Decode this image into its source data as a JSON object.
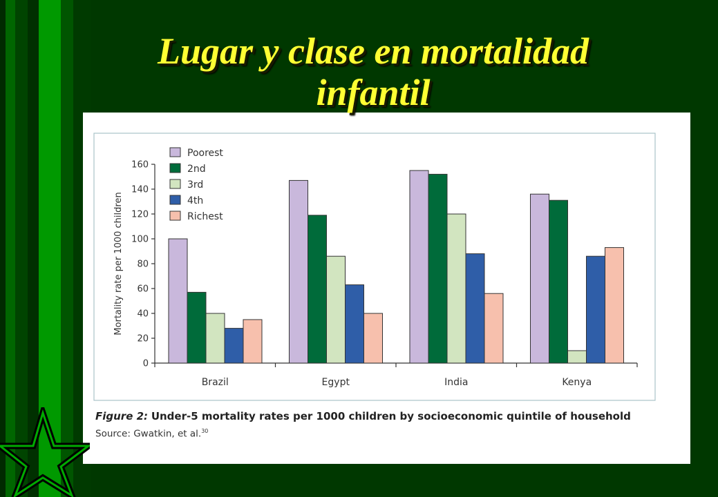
{
  "slide": {
    "title_line1": "Lugar y clase en mortalidad",
    "title_line2": "infantil"
  },
  "figure": {
    "caption_label": "Figure 2:",
    "caption_text": "Under-5 mortality rates per 1000 children by socioeconomic quintile of household",
    "source_text": "Source: Gwatkin, et al.",
    "source_ref": "30"
  },
  "colors": {
    "background": "#003800",
    "title": "#ffff33",
    "stripe_bright": "#009900",
    "stripe_dark": "#004400"
  },
  "chart_data": {
    "type": "bar",
    "ylabel": "Mortality rate per 1000 children",
    "xlabel": "",
    "ylim": [
      0,
      160
    ],
    "yticks": [
      0,
      20,
      40,
      60,
      80,
      100,
      120,
      140,
      160
    ],
    "categories": [
      "Brazil",
      "Egypt",
      "India",
      "Kenya"
    ],
    "legend_position": "top-left",
    "grid": false,
    "series": [
      {
        "name": "Poorest",
        "color": "#c9b8dc",
        "values": [
          100,
          147,
          155,
          136
        ]
      },
      {
        "name": "2nd",
        "color": "#006b3a",
        "values": [
          57,
          119,
          152,
          131
        ]
      },
      {
        "name": "3rd",
        "color": "#d2e5c0",
        "values": [
          40,
          86,
          120,
          10
        ]
      },
      {
        "name": "4th",
        "color": "#2f5ea8",
        "values": [
          28,
          63,
          88,
          86
        ]
      },
      {
        "name": "Richest",
        "color": "#f7c0ad",
        "values": [
          35,
          40,
          56,
          93
        ]
      }
    ],
    "kenya_order_note": ""
  }
}
